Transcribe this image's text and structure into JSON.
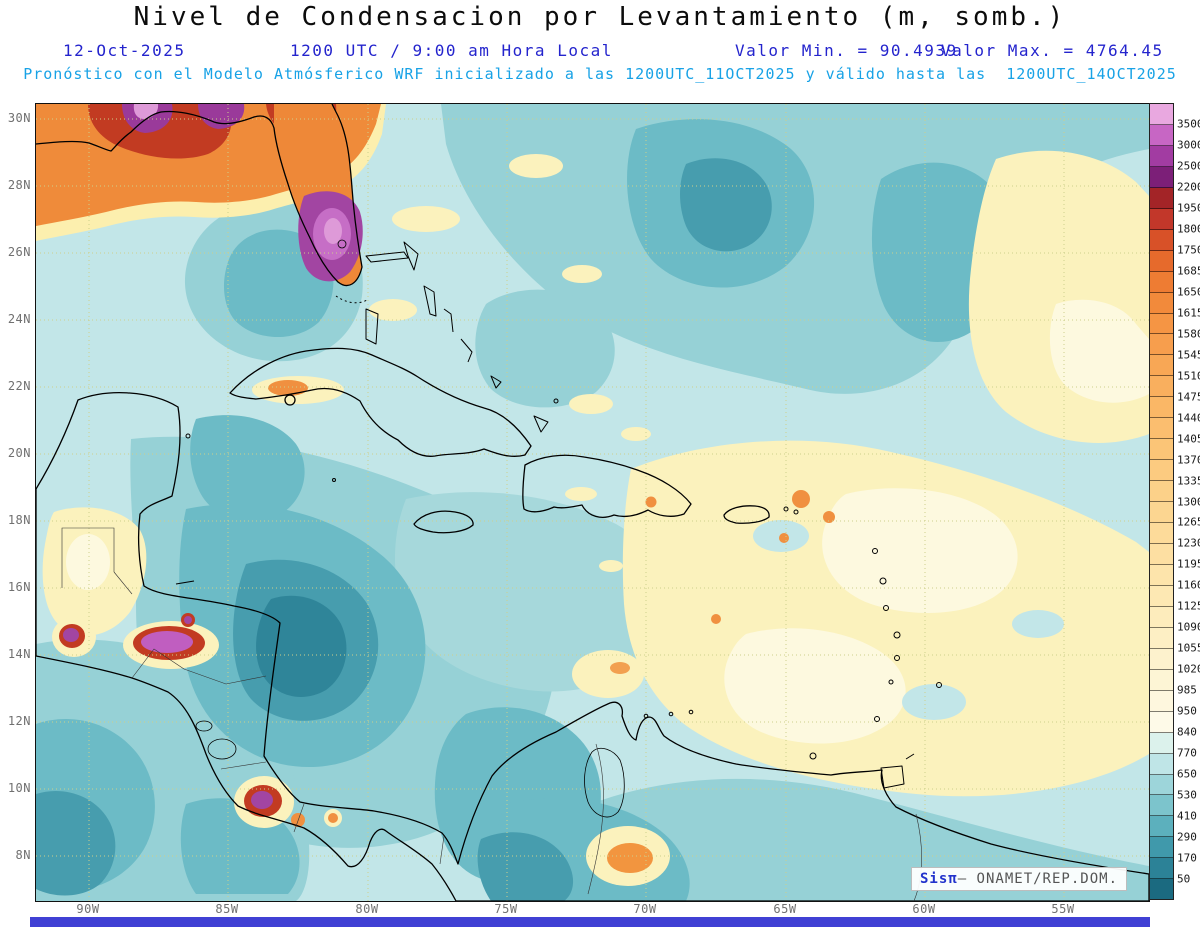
{
  "title": "Nivel de Condensacion por Levantamiento (m, somb.)",
  "subtitle": {
    "date": "12-Oct-2025",
    "time": "1200 UTC / 9:00 am Hora Local",
    "min": "Valor Min. = 90.4939",
    "max": "Valor Max. = 4764.45",
    "forecast": "Pronóstico con el Modelo Atmósferico WRF inicializado a las 1200UTC_11OCT2025 y válido hasta las  1200UTC_14OCT2025"
  },
  "axes": {
    "lat": [
      "30N",
      "28N",
      "26N",
      "24N",
      "22N",
      "20N",
      "18N",
      "16N",
      "14N",
      "12N",
      "10N",
      "8N"
    ],
    "lon": [
      "90W",
      "85W",
      "80W",
      "75W",
      "70W",
      "65W",
      "60W",
      "55W"
    ]
  },
  "colorbar": {
    "labels": [
      "3500",
      "3000",
      "2500",
      "2200",
      "1950",
      "1800",
      "1750",
      "1685",
      "1650",
      "1615",
      "1580",
      "1545",
      "1510",
      "1475",
      "1440",
      "1405",
      "1370",
      "1335",
      "1300",
      "1265",
      "1230",
      "1195",
      "1160",
      "1125",
      "1090",
      "1055",
      "1020",
      "985",
      "950",
      "840",
      "770",
      "650",
      "530",
      "410",
      "290",
      "170",
      "50"
    ],
    "colors": [
      "#e9a8e0",
      "#c766c4",
      "#a23ca2",
      "#7c1f78",
      "#a32427",
      "#c2372a",
      "#d85128",
      "#e66a2c",
      "#ee7c33",
      "#f28a3b",
      "#f59544",
      "#f79e4d",
      "#f8a755",
      "#f9af5e",
      "#fab766",
      "#fbbe6f",
      "#fbc577",
      "#fccb80",
      "#fcd189",
      "#fcd691",
      "#fddb9a",
      "#fddfa2",
      "#fde4ab",
      "#fde8b3",
      "#fdecbc",
      "#fdefc4",
      "#fdf2cd",
      "#fdf5d5",
      "#fef7de",
      "#fefae8",
      "#dcf2ec",
      "#bfe5e7",
      "#9dd5da",
      "#7cc4cc",
      "#5cb0bd",
      "#4099ab",
      "#2c8297",
      "#1b6a80"
    ]
  },
  "attribution": {
    "brand": "Sisπ",
    "rest": "– ONAMET/REP.DOM."
  },
  "footer_bar": {
    "color": "#4040d4"
  },
  "header_colors": {
    "title": "#0c0c0c",
    "line2": "#2424cd",
    "line3": "#18a2e6"
  }
}
